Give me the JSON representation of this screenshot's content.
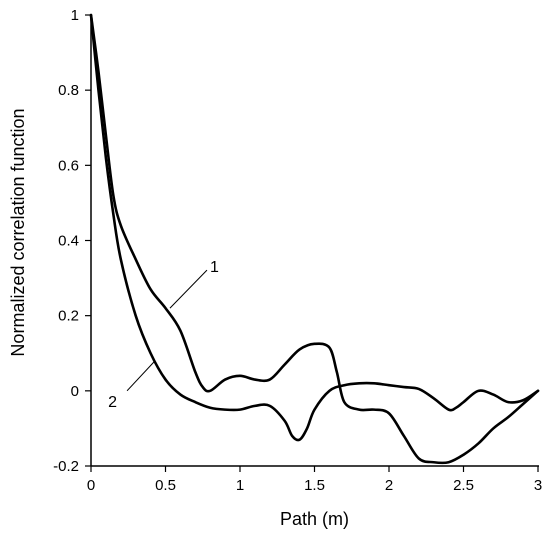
{
  "chart_data": {
    "type": "line",
    "xlabel": "Path (m)",
    "ylabel": "Normalized correlation function",
    "xlim": [
      0,
      3
    ],
    "ylim": [
      -0.2,
      1
    ],
    "x_ticks": [
      0,
      0.5,
      1,
      1.5,
      2,
      2.5,
      3
    ],
    "x_tick_labels": [
      "0",
      "0.5",
      "1",
      "1.5",
      "2",
      "2.5",
      "3"
    ],
    "y_ticks": [
      -0.2,
      0,
      0.2,
      0.4,
      0.6,
      0.8,
      1
    ],
    "y_tick_labels": [
      "-0.2",
      "0",
      "0.2",
      "0.4",
      "0.6",
      "0.8",
      "1"
    ],
    "grid": false,
    "legend": "none",
    "series": [
      {
        "label": "1",
        "color": "#000000",
        "points": [
          [
            0,
            1
          ],
          [
            0.05,
            0.85
          ],
          [
            0.1,
            0.68
          ],
          [
            0.15,
            0.52
          ],
          [
            0.2,
            0.44
          ],
          [
            0.3,
            0.35
          ],
          [
            0.4,
            0.27
          ],
          [
            0.5,
            0.22
          ],
          [
            0.6,
            0.16
          ],
          [
            0.7,
            0.05
          ],
          [
            0.75,
            0.01
          ],
          [
            0.8,
            0.0
          ],
          [
            0.9,
            0.03
          ],
          [
            1.0,
            0.04
          ],
          [
            1.1,
            0.03
          ],
          [
            1.2,
            0.03
          ],
          [
            1.3,
            0.07
          ],
          [
            1.4,
            0.11
          ],
          [
            1.5,
            0.125
          ],
          [
            1.6,
            0.115
          ],
          [
            1.65,
            0.05
          ],
          [
            1.7,
            -0.03
          ],
          [
            1.8,
            -0.05
          ],
          [
            1.9,
            -0.05
          ],
          [
            2.0,
            -0.06
          ],
          [
            2.1,
            -0.12
          ],
          [
            2.2,
            -0.18
          ],
          [
            2.3,
            -0.19
          ],
          [
            2.4,
            -0.19
          ],
          [
            2.5,
            -0.17
          ],
          [
            2.6,
            -0.14
          ],
          [
            2.7,
            -0.1
          ],
          [
            2.8,
            -0.07
          ],
          [
            2.9,
            -0.035
          ],
          [
            3.0,
            0
          ]
        ]
      },
      {
        "label": "2",
        "color": "#000000",
        "points": [
          [
            0,
            1
          ],
          [
            0.05,
            0.8
          ],
          [
            0.1,
            0.62
          ],
          [
            0.15,
            0.47
          ],
          [
            0.2,
            0.35
          ],
          [
            0.3,
            0.2
          ],
          [
            0.4,
            0.1
          ],
          [
            0.5,
            0.03
          ],
          [
            0.6,
            -0.01
          ],
          [
            0.7,
            -0.03
          ],
          [
            0.8,
            -0.045
          ],
          [
            0.9,
            -0.05
          ],
          [
            1.0,
            -0.05
          ],
          [
            1.1,
            -0.04
          ],
          [
            1.2,
            -0.04
          ],
          [
            1.3,
            -0.08
          ],
          [
            1.35,
            -0.12
          ],
          [
            1.4,
            -0.13
          ],
          [
            1.45,
            -0.1
          ],
          [
            1.5,
            -0.05
          ],
          [
            1.6,
            0.0
          ],
          [
            1.7,
            0.015
          ],
          [
            1.8,
            0.02
          ],
          [
            1.9,
            0.02
          ],
          [
            2.0,
            0.015
          ],
          [
            2.1,
            0.01
          ],
          [
            2.2,
            0.005
          ],
          [
            2.3,
            -0.02
          ],
          [
            2.4,
            -0.05
          ],
          [
            2.45,
            -0.045
          ],
          [
            2.5,
            -0.03
          ],
          [
            2.6,
            0.0
          ],
          [
            2.7,
            -0.01
          ],
          [
            2.8,
            -0.03
          ],
          [
            2.9,
            -0.025
          ],
          [
            3.0,
            0
          ]
        ]
      }
    ],
    "annotations": [
      {
        "text": "1",
        "series": "1",
        "point_x": 0.53,
        "point_y": 0.22
      },
      {
        "text": "2",
        "series": "2",
        "point_x": 0.43,
        "point_y": 0.08
      }
    ]
  }
}
